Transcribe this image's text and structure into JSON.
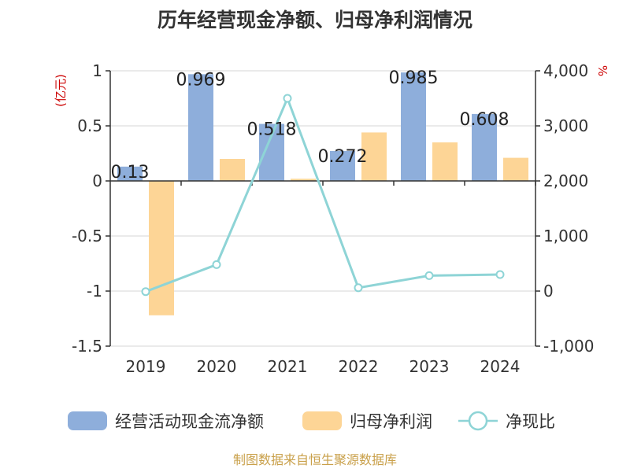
{
  "chart_data": {
    "type": "bar",
    "title": "历年经营现金净额、归母净利润情况",
    "categories": [
      "2019",
      "2020",
      "2021",
      "2022",
      "2023",
      "2024"
    ],
    "left_unit": "(亿元)",
    "right_unit": "%",
    "ylim": [
      -1.5,
      1
    ],
    "y_ticks": [
      "1",
      "0.5",
      "0",
      "-0.5",
      "-1",
      "-1.5"
    ],
    "y2lim": [
      -1000,
      4000
    ],
    "y2_ticks": [
      "4,000",
      "3,000",
      "2,000",
      "1,000",
      "0",
      "-1,000"
    ],
    "grid": true,
    "legend_position": "bottom",
    "series": [
      {
        "name": "经营活动现金流净额",
        "kind": "bar",
        "axis": "left",
        "color": "#8eaedb",
        "values": [
          0.13,
          0.969,
          0.518,
          0.272,
          0.985,
          0.608
        ],
        "labels": [
          "0.13",
          "0.969",
          "0.518",
          "0.272",
          "0.985",
          "0.608"
        ]
      },
      {
        "name": "归母净利润",
        "kind": "bar",
        "axis": "left",
        "color": "#fdd596",
        "values": [
          -1.22,
          0.2,
          0.02,
          0.44,
          0.35,
          0.21
        ]
      },
      {
        "name": "净现比",
        "kind": "line",
        "axis": "right",
        "color": "#8ed4d6",
        "values": [
          -10,
          480,
          3500,
          60,
          280,
          300
        ]
      }
    ]
  },
  "footer": {
    "source": "制图数据来自恒生聚源数据库"
  }
}
